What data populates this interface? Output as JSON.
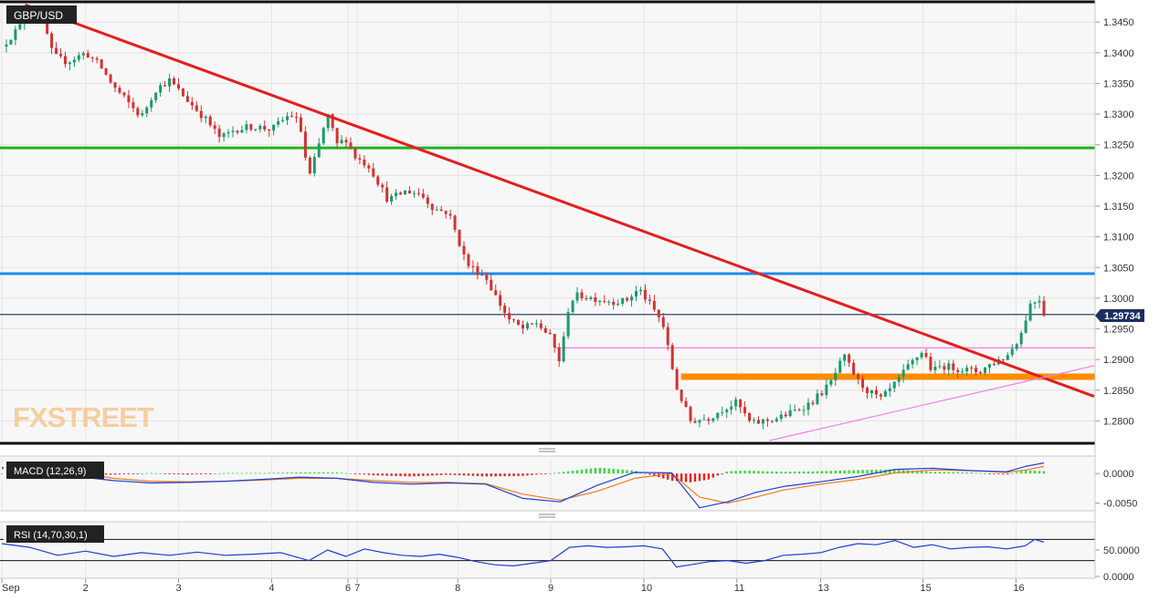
{
  "chart_data": [
    {
      "type": "candlestick",
      "title": "GBP/USD",
      "last_price_label": "1.29734",
      "last_price": 1.29734,
      "watermark": "FXSTREET",
      "ylim": [
        1.2765,
        1.348
      ],
      "yticks": [
        "1.3450",
        "1.3400",
        "1.3350",
        "1.3300",
        "1.3250",
        "1.3200",
        "1.3150",
        "1.3100",
        "1.3050",
        "1.3000",
        "1.2950",
        "1.2900",
        "1.2850",
        "1.2800"
      ],
      "x_labels": [
        "Sep",
        "2",
        "3",
        "4",
        "6",
        "7",
        "8",
        "9",
        "10",
        "11",
        "13",
        "15",
        "16"
      ],
      "x_label_positions_days": [
        0.0,
        0.9,
        1.9,
        2.9,
        3.72,
        3.82,
        4.9,
        5.9,
        6.9,
        7.9,
        8.8,
        9.9,
        10.9
      ],
      "x_range_days": [
        0,
        11.74
      ],
      "close_series": {
        "t": [
          0.0,
          0.35,
          0.45,
          0.55,
          0.7,
          0.9,
          1.05,
          1.2,
          1.35,
          1.5,
          1.65,
          1.8,
          1.95,
          2.2,
          2.35,
          2.5,
          2.7,
          2.9,
          3.1,
          3.2,
          3.3,
          3.4,
          3.5,
          3.6,
          3.7,
          3.8,
          3.95,
          4.15,
          4.35,
          4.5,
          4.65,
          4.8,
          5.0,
          5.2,
          5.3,
          5.45,
          5.6,
          5.75,
          5.9,
          6.0,
          6.1,
          6.2,
          6.35,
          6.55,
          6.7,
          6.85,
          7.1,
          7.25,
          7.4,
          7.6,
          7.75,
          7.9,
          8.05,
          8.2,
          8.35,
          8.5,
          8.7,
          8.9,
          9.05,
          9.2,
          9.3,
          9.45,
          9.6,
          9.75,
          9.9,
          10.0,
          10.1,
          10.3,
          10.5,
          10.65,
          10.8,
          10.95,
          11.05,
          11.15,
          11.2
        ],
        "price": [
          1.341,
          1.347,
          1.345,
          1.3395,
          1.3385,
          1.34,
          1.338,
          1.3345,
          1.332,
          1.3295,
          1.334,
          1.3355,
          1.333,
          1.329,
          1.326,
          1.3275,
          1.328,
          1.3275,
          1.33,
          1.3285,
          1.3195,
          1.3245,
          1.33,
          1.325,
          1.326,
          1.323,
          1.3215,
          1.316,
          1.3175,
          1.317,
          1.3145,
          1.314,
          1.3055,
          1.3035,
          1.3005,
          1.2965,
          1.295,
          1.296,
          1.2935,
          1.2895,
          1.2995,
          1.3005,
          1.3,
          1.2995,
          1.2995,
          1.3015,
          1.296,
          1.2855,
          1.28,
          1.2805,
          1.282,
          1.283,
          1.2795,
          1.28,
          1.2805,
          1.2815,
          1.283,
          1.286,
          1.2905,
          1.2865,
          1.285,
          1.2835,
          1.286,
          1.289,
          1.2915,
          1.288,
          1.289,
          1.2885,
          1.288,
          1.2895,
          1.2905,
          1.294,
          1.299,
          1.3,
          1.2975
        ]
      },
      "levels": [
        {
          "name": "resistance-green",
          "price": 1.3245,
          "color": "#22b222"
        },
        {
          "name": "resistance-blue",
          "price": 1.304,
          "color": "#1e8ce6"
        },
        {
          "name": "resistance-pink",
          "price": 1.2919,
          "color": "#f07ef0",
          "from_day": 5.95
        },
        {
          "name": "support-orange",
          "price": 1.2872,
          "color": "#ff8c00",
          "from_day": 7.3
        },
        {
          "name": "last-price-line",
          "price": 1.29734,
          "color": "#1a3060"
        }
      ],
      "trendlines": [
        {
          "name": "downtrend-red",
          "color": "#e02020",
          "from": [
            0.25,
            1.3478
          ],
          "to": [
            11.74,
            1.284
          ]
        },
        {
          "name": "uptrend-pink",
          "color": "#f07ef0",
          "from": [
            8.25,
            1.2768
          ],
          "to": [
            11.74,
            1.289
          ]
        }
      ],
      "up_color": "#1a9a6a",
      "down_color": "#d23232",
      "grid": true
    },
    {
      "type": "bar",
      "title": "MACD (12,26,9)",
      "yticks": [
        "0.0000",
        "-0.0050"
      ],
      "ylim": [
        -0.006,
        0.0025
      ],
      "macd_line_color": "#1f3fd6",
      "signal_line_color": "#f07a20",
      "hist_up_color": "#3ad83a",
      "hist_down_color": "#e62020",
      "histogram": {
        "t": [
          0.0,
          0.4,
          0.8,
          1.2,
          1.6,
          2.0,
          2.4,
          2.8,
          3.2,
          3.6,
          4.0,
          4.4,
          4.8,
          5.2,
          5.6,
          6.0,
          6.4,
          6.8,
          7.2,
          7.4,
          7.6,
          7.8,
          8.0,
          8.4,
          8.8,
          9.2,
          9.6,
          10.0,
          10.4,
          10.8,
          11.0,
          11.2
        ],
        "v": [
          0.0,
          -0.0005,
          -0.0002,
          -0.0002,
          0.0001,
          -0.0002,
          0.0001,
          0.0001,
          0.0002,
          0.0002,
          -0.0003,
          -0.0005,
          -0.0002,
          -0.0005,
          -0.0004,
          0.0002,
          0.001,
          0.0005,
          -0.0012,
          -0.0015,
          -0.001,
          0.0004,
          0.0005,
          0.0003,
          0.0004,
          0.0006,
          0.0007,
          0.0003,
          0.0002,
          -0.0002,
          0.0006,
          0.0004
        ]
      },
      "macd": {
        "t": [
          0.0,
          0.4,
          0.8,
          1.2,
          1.6,
          2.0,
          2.4,
          2.8,
          3.2,
          3.6,
          4.0,
          4.4,
          4.8,
          5.2,
          5.6,
          6.0,
          6.4,
          6.8,
          7.2,
          7.5,
          7.8,
          8.1,
          8.4,
          8.8,
          9.2,
          9.6,
          10.0,
          10.4,
          10.8,
          11.0,
          11.2
        ],
        "v": [
          0.001,
          0.0018,
          -0.0005,
          -0.0012,
          -0.0016,
          -0.0015,
          -0.0013,
          -0.001,
          -0.0006,
          -0.0008,
          -0.0015,
          -0.0018,
          -0.0016,
          -0.0018,
          -0.0042,
          -0.0048,
          -0.002,
          0.0002,
          0.0001,
          -0.0058,
          -0.0048,
          -0.0032,
          -0.0022,
          -0.0014,
          -0.0005,
          0.0007,
          0.0009,
          0.0005,
          0.0003,
          0.0012,
          0.0018
        ]
      },
      "signal": {
        "t": [
          0.0,
          0.4,
          0.8,
          1.2,
          1.6,
          2.0,
          2.4,
          2.8,
          3.2,
          3.6,
          4.0,
          4.4,
          4.8,
          5.2,
          5.6,
          6.0,
          6.4,
          6.8,
          7.2,
          7.5,
          7.8,
          8.1,
          8.4,
          8.8,
          9.2,
          9.6,
          10.0,
          10.4,
          10.8,
          11.0,
          11.2
        ],
        "v": [
          0.0008,
          0.0012,
          0.0002,
          -0.0008,
          -0.0013,
          -0.0014,
          -0.0013,
          -0.0011,
          -0.0008,
          -0.0008,
          -0.0012,
          -0.0015,
          -0.0015,
          -0.0017,
          -0.0035,
          -0.0045,
          -0.003,
          -0.0008,
          0.0,
          -0.004,
          -0.005,
          -0.004,
          -0.0028,
          -0.0018,
          -0.001,
          0.0001,
          0.0006,
          0.0005,
          0.0002,
          0.0006,
          0.0012
        ]
      }
    },
    {
      "type": "line",
      "title": "RSI (14,70,30,1)",
      "yticks": [
        "50.0000",
        "0.0000"
      ],
      "ylim": [
        0,
        100
      ],
      "levels": [
        70,
        30
      ],
      "line_color": "#1f3fd6",
      "t": [
        0.0,
        0.3,
        0.6,
        0.9,
        1.2,
        1.5,
        1.8,
        2.1,
        2.4,
        2.7,
        3.0,
        3.3,
        3.5,
        3.7,
        3.9,
        4.1,
        4.3,
        4.5,
        4.7,
        4.9,
        5.1,
        5.3,
        5.5,
        5.7,
        5.9,
        6.1,
        6.3,
        6.5,
        6.7,
        6.9,
        7.1,
        7.25,
        7.4,
        7.6,
        7.8,
        8.0,
        8.2,
        8.4,
        8.6,
        8.8,
        9.0,
        9.2,
        9.4,
        9.6,
        9.8,
        10.0,
        10.2,
        10.4,
        10.6,
        10.8,
        11.0,
        11.1,
        11.2
      ],
      "v": [
        62,
        55,
        40,
        48,
        38,
        45,
        40,
        46,
        40,
        42,
        45,
        30,
        50,
        38,
        52,
        45,
        40,
        38,
        42,
        36,
        28,
        22,
        20,
        25,
        30,
        55,
        58,
        55,
        56,
        58,
        52,
        18,
        22,
        28,
        30,
        25,
        30,
        40,
        42,
        45,
        55,
        62,
        60,
        68,
        55,
        60,
        52,
        55,
        56,
        52,
        58,
        70,
        65
      ]
    }
  ]
}
